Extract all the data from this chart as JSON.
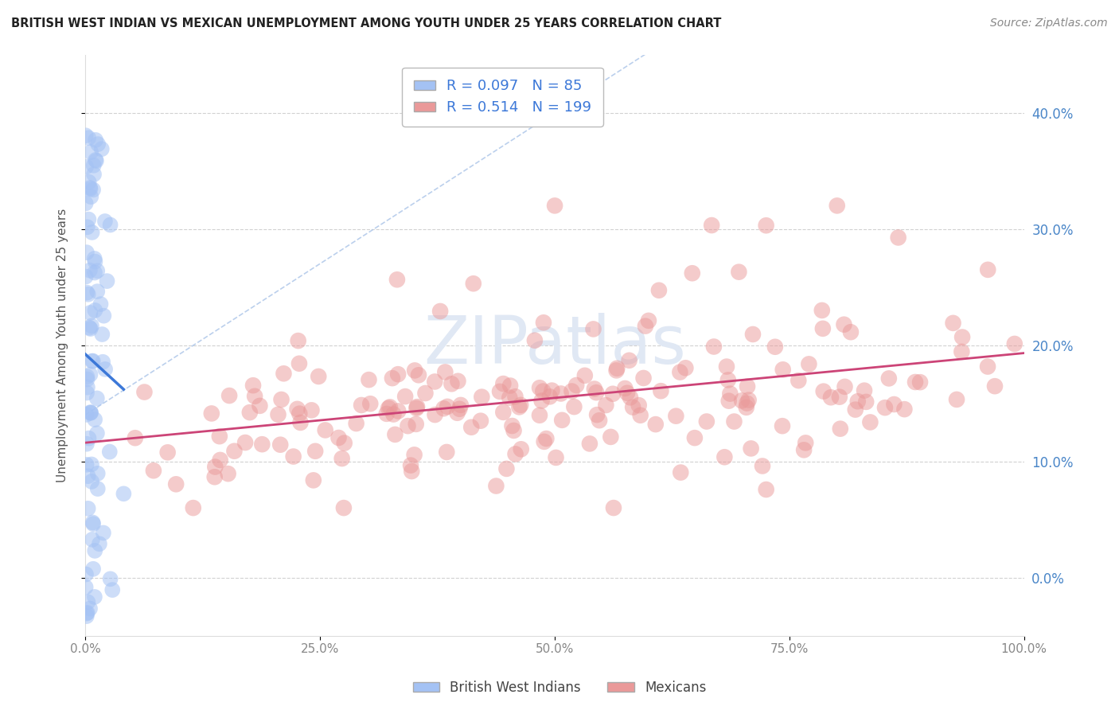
{
  "title": "BRITISH WEST INDIAN VS MEXICAN UNEMPLOYMENT AMONG YOUTH UNDER 25 YEARS CORRELATION CHART",
  "source": "Source: ZipAtlas.com",
  "ylabel": "Unemployment Among Youth under 25 years",
  "xlim": [
    0,
    1.0
  ],
  "ylim": [
    -0.05,
    0.45
  ],
  "yticks": [
    0.0,
    0.1,
    0.2,
    0.3,
    0.4
  ],
  "ytick_labels_right": [
    "0.0%",
    "10.0%",
    "20.0%",
    "30.0%",
    "40.0%"
  ],
  "xticks": [
    0.0,
    0.25,
    0.5,
    0.75,
    1.0
  ],
  "xtick_labels": [
    "0.0%",
    "25.0%",
    "50.0%",
    "75.0%",
    "100.0%"
  ],
  "blue_color": "#a4c2f4",
  "pink_color": "#ea9999",
  "blue_line_color": "#3c78d8",
  "pink_line_color": "#cc4477",
  "blue_R": 0.097,
  "blue_N": 85,
  "pink_R": 0.514,
  "pink_N": 199,
  "watermark_zip": "ZIP",
  "watermark_atlas": "atlas",
  "background_color": "#ffffff",
  "grid_color": "#cccccc",
  "title_color": "#222222",
  "source_color": "#888888",
  "legend_text_color": "#3c78d8",
  "ytick_label_color": "#4a86c8",
  "xtick_label_color": "#888888"
}
